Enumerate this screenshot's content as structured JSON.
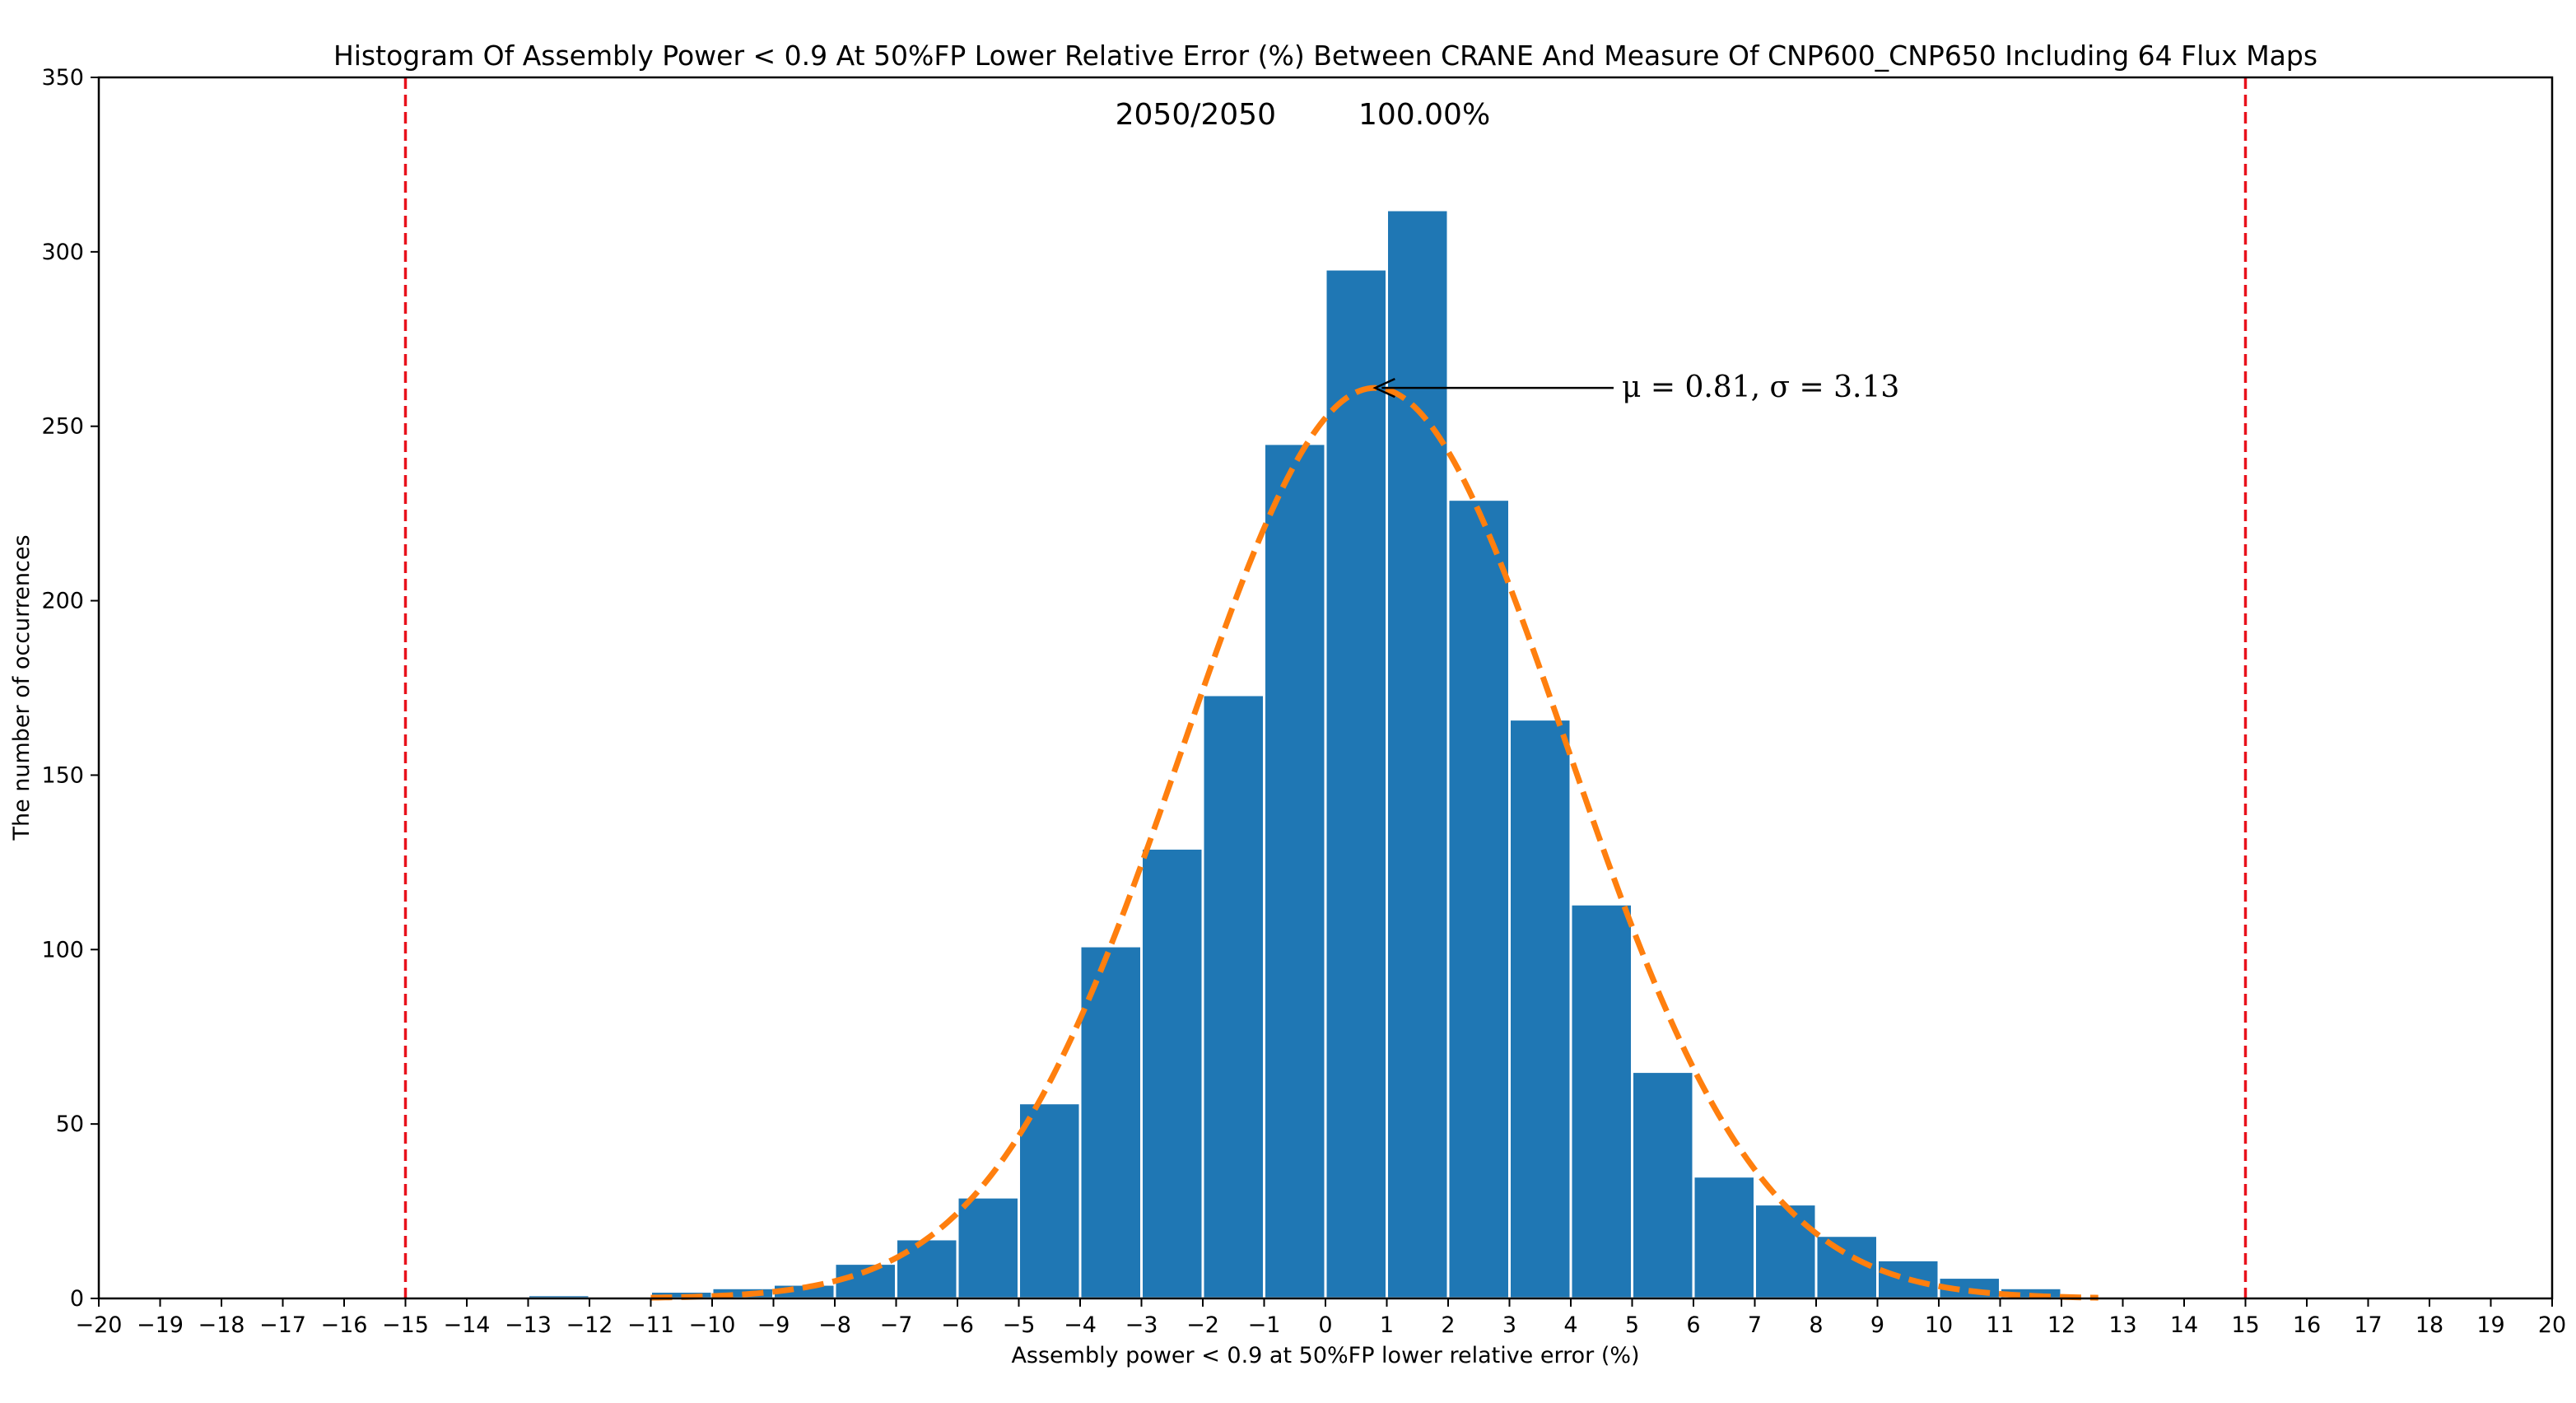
{
  "chart_data": {
    "type": "bar",
    "title": "Histogram Of Assembly Power < 0.9 At 50%FP Lower Relative Error (%) Between CRANE And Measure Of CNP600_CNP650 Including 64 Flux Maps",
    "xlabel": "Assembly power < 0.9 at 50%FP lower relative error (%)",
    "ylabel": "The number of occurrences",
    "xlim": [
      -20,
      20
    ],
    "ylim": [
      0,
      350
    ],
    "xticks": [
      -20,
      -19,
      -18,
      -17,
      -16,
      -15,
      -14,
      -13,
      -12,
      -11,
      -10,
      -9,
      -8,
      -7,
      -6,
      -5,
      -4,
      -3,
      -2,
      -1,
      0,
      1,
      2,
      3,
      4,
      5,
      6,
      7,
      8,
      9,
      10,
      11,
      12,
      13,
      14,
      15,
      16,
      17,
      18,
      19,
      20
    ],
    "yticks": [
      0,
      50,
      100,
      150,
      200,
      250,
      300,
      350
    ],
    "summary_count": "2050/2050",
    "summary_percent": "100.00%",
    "fit_label": "μ = 0.81, σ = 3.13",
    "fit": {
      "mu": 0.81,
      "sigma": 3.13,
      "peak": 261
    },
    "limits": [
      -15,
      15
    ],
    "colors": {
      "bar": "#1f77b4",
      "fit": "#ff7f0e",
      "limit": "#e8111b"
    },
    "bins": [
      {
        "x0": -13,
        "x1": -12,
        "value": 1
      },
      {
        "x0": -11,
        "x1": -10,
        "value": 2
      },
      {
        "x0": -10,
        "x1": -9,
        "value": 3
      },
      {
        "x0": -9,
        "x1": -8,
        "value": 4
      },
      {
        "x0": -8,
        "x1": -7,
        "value": 10
      },
      {
        "x0": -7,
        "x1": -6,
        "value": 17
      },
      {
        "x0": -6,
        "x1": -5,
        "value": 29
      },
      {
        "x0": -5,
        "x1": -4,
        "value": 56
      },
      {
        "x0": -4,
        "x1": -3,
        "value": 101
      },
      {
        "x0": -3,
        "x1": -2,
        "value": 129
      },
      {
        "x0": -2,
        "x1": -1,
        "value": 173
      },
      {
        "x0": -1,
        "x1": 0,
        "value": 245
      },
      {
        "x0": 0,
        "x1": 1,
        "value": 295
      },
      {
        "x0": 1,
        "x1": 2,
        "value": 312
      },
      {
        "x0": 2,
        "x1": 3,
        "value": 229
      },
      {
        "x0": 3,
        "x1": 4,
        "value": 166
      },
      {
        "x0": 4,
        "x1": 5,
        "value": 113
      },
      {
        "x0": 5,
        "x1": 6,
        "value": 65
      },
      {
        "x0": 6,
        "x1": 7,
        "value": 35
      },
      {
        "x0": 7,
        "x1": 8,
        "value": 27
      },
      {
        "x0": 8,
        "x1": 9,
        "value": 18
      },
      {
        "x0": 9,
        "x1": 10,
        "value": 11
      },
      {
        "x0": 10,
        "x1": 11,
        "value": 6
      },
      {
        "x0": 11,
        "x1": 12,
        "value": 3
      }
    ]
  }
}
